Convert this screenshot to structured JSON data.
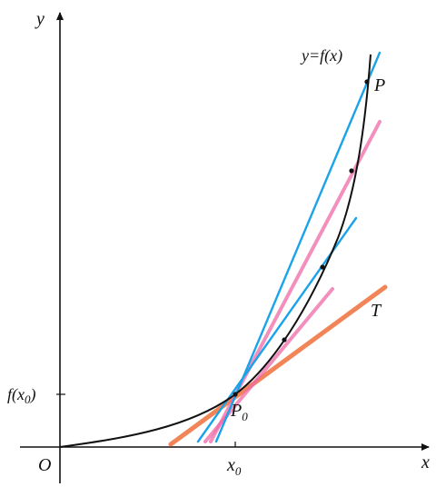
{
  "labels": {
    "y_axis": "y",
    "x_axis": "x",
    "origin": "O",
    "curve": "y=f(x)",
    "point_p": "P",
    "point_p0": "P",
    "point_p0_sub": "0",
    "tangent": "T",
    "fx0_prefix": "f(x",
    "fx0_sub": "0",
    "fx0_suffix": ")",
    "x0": "x",
    "x0_sub": "0"
  },
  "colors": {
    "axis": "#111111",
    "curve": "#111111",
    "secant": "#1aa3e8",
    "secant_faded": "#f06aa8",
    "tangent": "#f0703a"
  }
}
